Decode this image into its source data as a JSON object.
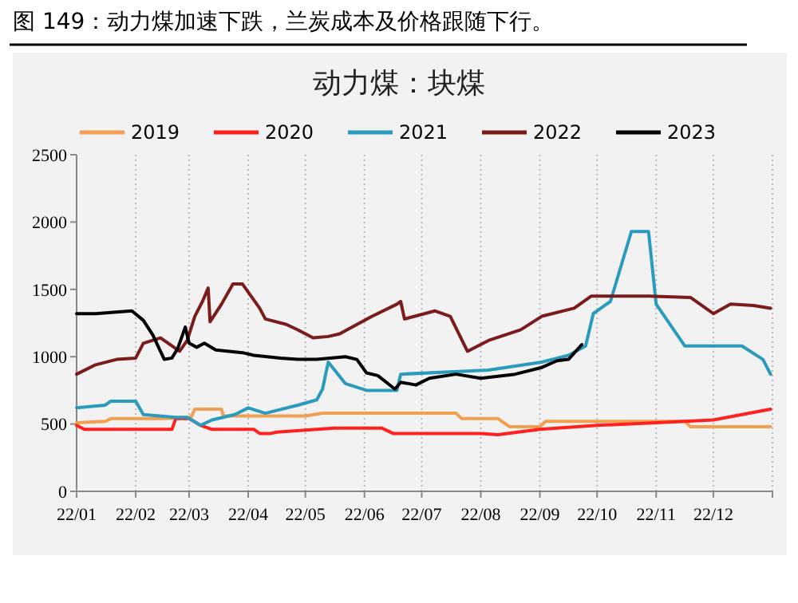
{
  "chart_data": {
    "type": "line",
    "title": "图 149：动力煤加速下跌，兰炭成本及价格跟随下行。",
    "subtitle": "动力煤：块煤",
    "xlim": [
      "2022-01-01",
      "2023-01-01"
    ],
    "xticks": [
      {
        "value": "2022-01-01",
        "label": "22/01"
      },
      {
        "value": "2022-02-01",
        "label": "22/02"
      },
      {
        "value": "2022-03-01",
        "label": "22/03"
      },
      {
        "value": "2022-04-01",
        "label": "22/04"
      },
      {
        "value": "2022-05-01",
        "label": "22/05"
      },
      {
        "value": "2022-06-01",
        "label": "22/06"
      },
      {
        "value": "2022-07-01",
        "label": "22/07"
      },
      {
        "value": "2022-08-01",
        "label": "22/08"
      },
      {
        "value": "2022-09-01",
        "label": "22/09"
      },
      {
        "value": "2022-10-01",
        "label": "22/10"
      },
      {
        "value": "2022-11-01",
        "label": "22/11"
      },
      {
        "value": "2022-12-01",
        "label": "22/12"
      },
      {
        "value": "2023-01-01",
        "label": null
      }
    ],
    "ylim": [
      0,
      2500
    ],
    "yticks": [
      0,
      500,
      1000,
      1500,
      2000,
      2500
    ],
    "grid": "x",
    "legend": "top",
    "line_style": "solid",
    "marker": "none",
    "series": [
      {
        "name": "2019",
        "color": "#f0a050",
        "x": [
          "2022-01-01",
          "2022-01-16",
          "2022-01-19",
          "2022-02-16",
          "2022-03-02",
          "2022-03-04",
          "2022-03-18",
          "2022-03-19",
          "2022-05-01",
          "2022-05-10",
          "2022-07-19",
          "2022-07-22",
          "2022-08-10",
          "2022-08-16",
          "2022-09-01",
          "2022-09-04",
          "2022-11-16",
          "2022-11-19",
          "2022-12-31"
        ],
        "values": [
          510,
          520,
          540,
          540,
          550,
          610,
          610,
          560,
          560,
          580,
          580,
          540,
          540,
          480,
          480,
          520,
          520,
          480,
          480
        ]
      },
      {
        "name": "2020",
        "color": "#ff2020",
        "x": [
          "2022-01-01",
          "2022-01-05",
          "2022-02-20",
          "2022-02-22",
          "2022-03-01",
          "2022-03-07",
          "2022-03-13",
          "2022-04-04",
          "2022-04-07",
          "2022-04-13",
          "2022-04-16",
          "2022-05-16",
          "2022-06-10",
          "2022-06-16",
          "2022-07-01",
          "2022-08-01",
          "2022-08-10",
          "2022-09-01",
          "2022-10-01",
          "2022-11-01",
          "2022-12-01",
          "2022-12-16",
          "2022-12-31"
        ],
        "values": [
          490,
          460,
          460,
          540,
          540,
          490,
          460,
          460,
          430,
          430,
          440,
          470,
          470,
          430,
          430,
          430,
          420,
          460,
          490,
          510,
          530,
          570,
          610
        ]
      },
      {
        "name": "2021",
        "color": "#2a9bbd",
        "x": [
          "2022-01-01",
          "2022-01-16",
          "2022-01-19",
          "2022-02-01",
          "2022-02-05",
          "2022-02-22",
          "2022-02-28",
          "2022-03-07",
          "2022-03-13",
          "2022-03-25",
          "2022-04-01",
          "2022-04-10",
          "2022-04-27",
          "2022-05-07",
          "2022-05-10",
          "2022-05-13",
          "2022-05-22",
          "2022-06-02",
          "2022-06-18",
          "2022-06-20",
          "2022-08-05",
          "2022-09-02",
          "2022-09-16",
          "2022-09-25",
          "2022-09-29",
          "2022-10-08",
          "2022-10-19",
          "2022-10-28",
          "2022-11-01",
          "2022-11-16",
          "2022-12-16",
          "2022-12-27",
          "2022-12-31"
        ],
        "values": [
          620,
          640,
          670,
          670,
          570,
          550,
          550,
          490,
          530,
          570,
          620,
          580,
          640,
          680,
          760,
          960,
          800,
          750,
          750,
          870,
          900,
          960,
          1010,
          1080,
          1320,
          1410,
          1930,
          1930,
          1390,
          1080,
          1080,
          980,
          870
        ]
      },
      {
        "name": "2022",
        "color": "#7b1c1c",
        "x": [
          "2022-01-01",
          "2022-01-11",
          "2022-01-22",
          "2022-02-01",
          "2022-02-05",
          "2022-02-14",
          "2022-02-20",
          "2022-02-24",
          "2022-02-28",
          "2022-03-04",
          "2022-03-08",
          "2022-03-11",
          "2022-03-12",
          "2022-03-18",
          "2022-03-24",
          "2022-03-29",
          "2022-04-07",
          "2022-04-10",
          "2022-04-21",
          "2022-04-27",
          "2022-05-05",
          "2022-05-13",
          "2022-05-19",
          "2022-06-05",
          "2022-06-18",
          "2022-06-20",
          "2022-06-22",
          "2022-07-08",
          "2022-07-16",
          "2022-07-25",
          "2022-08-05",
          "2022-08-22",
          "2022-09-02",
          "2022-09-19",
          "2022-09-28",
          "2022-10-28",
          "2022-11-19",
          "2022-12-01",
          "2022-12-10",
          "2022-12-22",
          "2022-12-31"
        ],
        "values": [
          870,
          940,
          980,
          990,
          1100,
          1140,
          1080,
          1040,
          1120,
          1300,
          1410,
          1510,
          1260,
          1390,
          1540,
          1540,
          1360,
          1280,
          1240,
          1200,
          1140,
          1150,
          1170,
          1300,
          1390,
          1410,
          1280,
          1340,
          1300,
          1040,
          1120,
          1200,
          1300,
          1360,
          1450,
          1450,
          1440,
          1320,
          1390,
          1380,
          1360
        ]
      },
      {
        "name": "2023",
        "color": "#000000",
        "x": [
          "2022-01-01",
          "2022-01-11",
          "2022-01-30",
          "2022-02-05",
          "2022-02-10",
          "2022-02-16",
          "2022-02-20",
          "2022-02-23",
          "2022-02-27",
          "2022-03-01",
          "2022-03-05",
          "2022-03-09",
          "2022-03-15",
          "2022-03-29",
          "2022-04-04",
          "2022-04-18",
          "2022-04-27",
          "2022-05-07",
          "2022-05-22",
          "2022-05-28",
          "2022-06-02",
          "2022-06-08",
          "2022-06-16",
          "2022-06-17",
          "2022-06-20",
          "2022-06-28",
          "2022-07-05",
          "2022-07-19",
          "2022-08-01",
          "2022-08-19",
          "2022-09-02",
          "2022-09-10",
          "2022-09-16",
          "2022-09-23"
        ],
        "values": [
          1320,
          1320,
          1340,
          1270,
          1160,
          980,
          990,
          1060,
          1220,
          1100,
          1070,
          1100,
          1050,
          1030,
          1010,
          990,
          980,
          980,
          1000,
          980,
          880,
          860,
          770,
          760,
          810,
          790,
          840,
          870,
          840,
          870,
          920,
          970,
          980,
          1090
        ]
      }
    ]
  }
}
